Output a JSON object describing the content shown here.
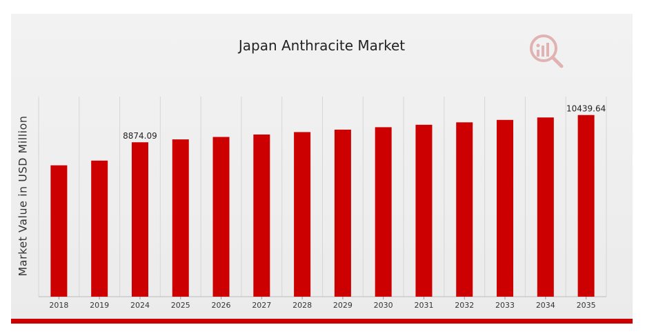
{
  "chart_data": {
    "type": "bar",
    "title": "Japan Anthracite Market",
    "xlabel": "",
    "ylabel": "Market Value in USD Million",
    "categories": [
      "2018",
      "2019",
      "2024",
      "2025",
      "2026",
      "2027",
      "2028",
      "2029",
      "2030",
      "2031",
      "2032",
      "2033",
      "2034",
      "2035"
    ],
    "values": [
      7550,
      7820,
      8874.09,
      9040,
      9180,
      9320,
      9460,
      9600,
      9740,
      9880,
      10020,
      10160,
      10300,
      10439.64
    ],
    "data_labels": {
      "2024": "8874.09",
      "2035": "10439.64"
    },
    "ylim": [
      0,
      11500
    ],
    "grid": "vertical",
    "bar_color": "#cc0000"
  },
  "colors": {
    "accent": "#cc0000",
    "background": "#efefef"
  },
  "logo": {
    "icon": "chart-magnifier-logo-icon"
  }
}
